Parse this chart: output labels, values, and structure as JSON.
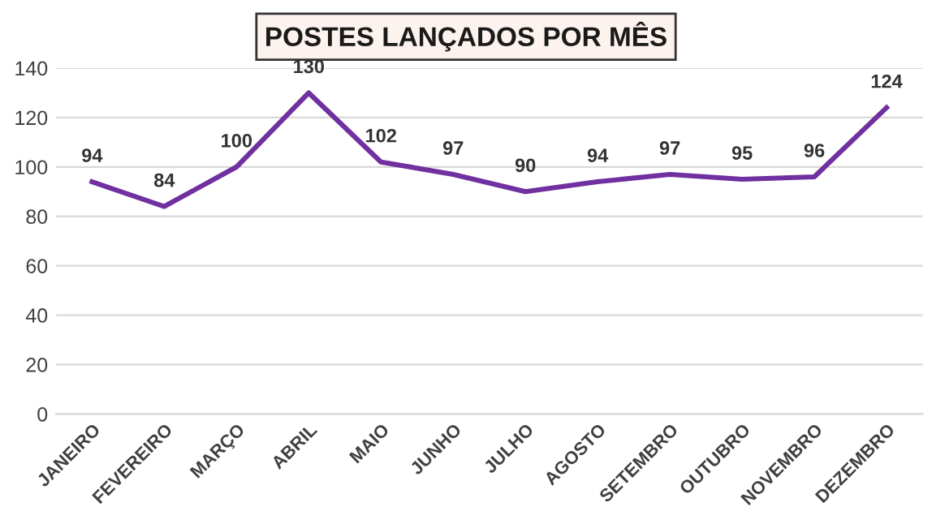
{
  "chart_data": {
    "type": "line",
    "title": "POSTES LANÇADOS POR MÊS",
    "categories": [
      "JANEIRO",
      "FEVEREIRO",
      "MARÇO",
      "ABRIL",
      "MAIO",
      "JUNHO",
      "JULHO",
      "AGOSTO",
      "SETEMBRO",
      "OUTUBRO",
      "NOVEMBRO",
      "DEZEMBRO"
    ],
    "series": [
      {
        "color": "#7030a0",
        "values": [
          94,
          84,
          100,
          130,
          102,
          97,
          90,
          94,
          97,
          95,
          96,
          124
        ]
      }
    ],
    "ylim": [
      0,
      140
    ],
    "yticks": [
      0,
      20,
      40,
      60,
      80,
      100,
      120,
      140
    ],
    "grid": "y",
    "data_labels": true,
    "marker": "none",
    "line_style": "solid"
  }
}
